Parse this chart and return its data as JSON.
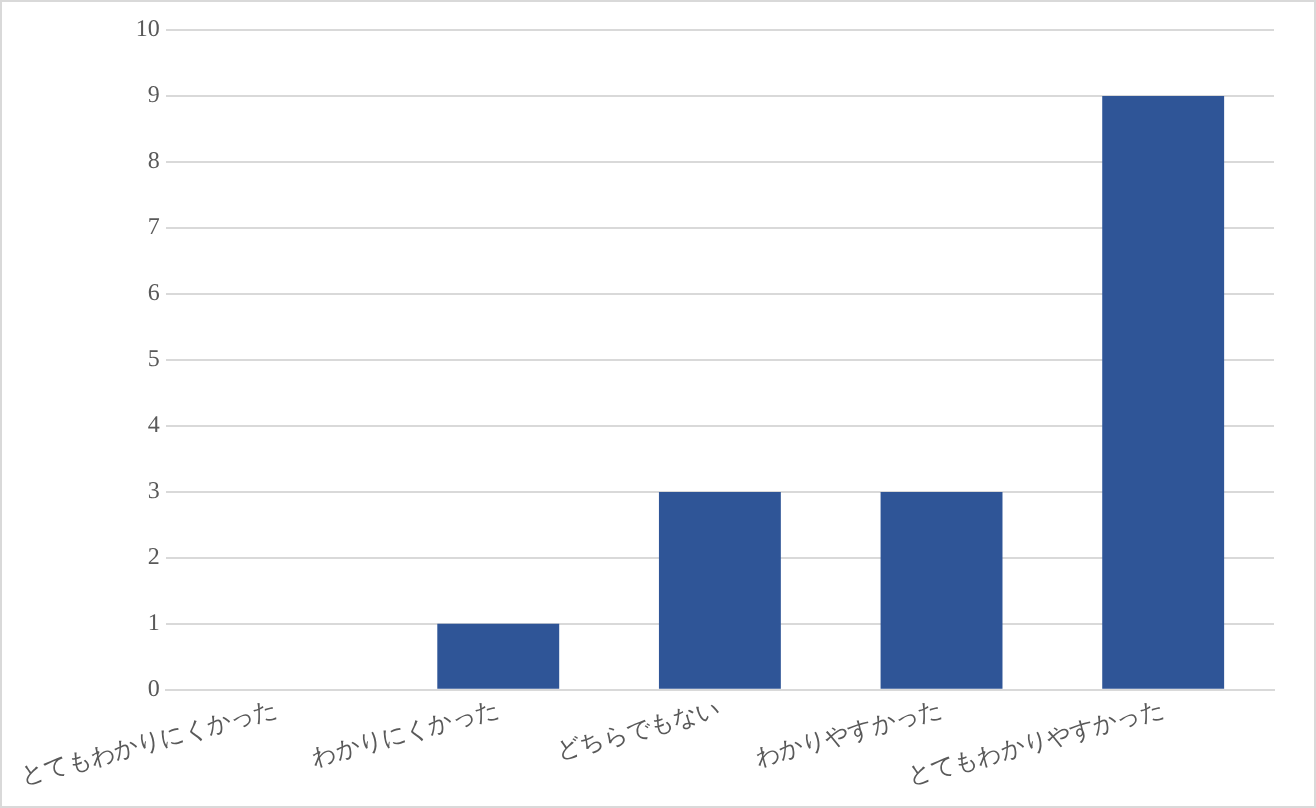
{
  "chart_data": {
    "type": "bar",
    "categories": [
      "とてもわかりにくかった",
      "わかりにくかった",
      "どちらでもない",
      "わかりやすかった",
      "とてもわかりやすかった"
    ],
    "values": [
      0,
      1,
      3,
      3,
      9
    ],
    "color": "#2f5597",
    "ylim": [
      0,
      10
    ],
    "yticks": [
      0,
      1,
      2,
      3,
      4,
      5,
      6,
      7,
      8,
      9,
      10
    ],
    "grid": "y"
  }
}
